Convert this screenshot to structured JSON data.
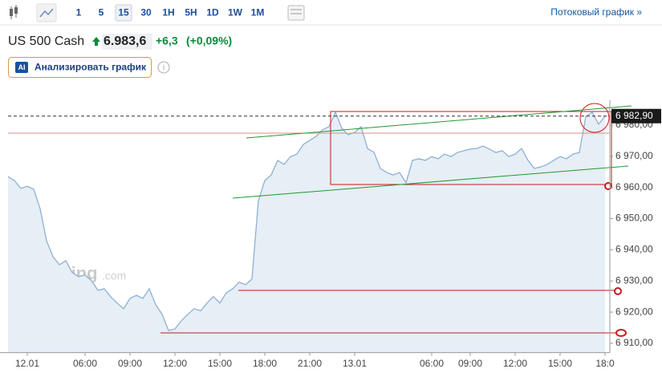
{
  "toolbar": {
    "intervals": [
      "1",
      "5",
      "15",
      "30",
      "1H",
      "5H",
      "1D",
      "1W",
      "1M"
    ],
    "stream_link": "Потоковый график »"
  },
  "header": {
    "symbol": "US 500 Cash",
    "price": "6.983,6",
    "change": "+6,3",
    "change_pct": "(+0,09%)"
  },
  "analyze_button": {
    "badge": "AI",
    "label": "Анализировать график"
  },
  "chart_data": {
    "type": "area",
    "watermark": [
      "Investing",
      ".com"
    ],
    "color": "#8fb0d3",
    "categories": [
      null,
      null,
      null,
      "12.01",
      null,
      null,
      null,
      null,
      null,
      null,
      null,
      null,
      "06:00",
      null,
      null,
      null,
      null,
      null,
      null,
      "09:00",
      null,
      null,
      null,
      null,
      null,
      null,
      "12:00",
      null,
      null,
      null,
      null,
      null,
      null,
      "15:00",
      null,
      null,
      null,
      null,
      null,
      null,
      "18:00",
      null,
      null,
      null,
      null,
      null,
      null,
      "21:00",
      null,
      null,
      null,
      null,
      null,
      null,
      "13.01",
      null,
      null,
      null,
      null,
      null,
      null,
      null,
      null,
      null,
      null,
      null,
      "06:00",
      null,
      null,
      null,
      null,
      null,
      "09:00",
      null,
      null,
      null,
      null,
      null,
      null,
      "12:00",
      null,
      null,
      null,
      null,
      null,
      null,
      "15:00",
      null,
      null,
      null,
      null,
      null,
      null,
      "18:0"
    ],
    "values": [
      6963.5,
      6962.2,
      6959.7,
      6960.4,
      6959.4,
      6953.2,
      6942.9,
      6937.8,
      6935.2,
      6936.5,
      6932.7,
      6931.4,
      6931.9,
      6930.1,
      6927.0,
      6927.5,
      6924.9,
      6922.9,
      6921.1,
      6924.4,
      6925.4,
      6924.4,
      6927.5,
      6922.4,
      6919.3,
      6914.1,
      6914.6,
      6917.2,
      6919.3,
      6921.1,
      6920.4,
      6922.9,
      6925.0,
      6922.9,
      6926.2,
      6927.5,
      6929.6,
      6928.8,
      6930.6,
      6955.8,
      6962.2,
      6964.0,
      6968.7,
      6967.4,
      6969.9,
      6970.7,
      6973.8,
      6975.1,
      6976.4,
      6978.5,
      6979.5,
      6984.1,
      6979.0,
      6976.9,
      6977.7,
      6979.5,
      6972.5,
      6971.3,
      6966.1,
      6964.8,
      6964.0,
      6964.8,
      6961.5,
      6968.7,
      6969.2,
      6968.7,
      6969.9,
      6969.2,
      6970.7,
      6969.9,
      6971.2,
      6971.8,
      6972.3,
      6972.5,
      6973.3,
      6972.3,
      6971.2,
      6971.8,
      6969.9,
      6970.7,
      6972.5,
      6968.7,
      6966.1,
      6966.6,
      6967.4,
      6968.7,
      6969.9,
      6969.2,
      6970.7,
      6971.2,
      6982.8,
      6984.1,
      6980.3,
      6982.9
    ],
    "ylim": [
      6907,
      6987
    ],
    "yticks": [
      {
        "value": 6910,
        "label": "6 910,00"
      },
      {
        "value": 6920,
        "label": "6 920,00"
      },
      {
        "value": 6930,
        "label": "6 930,00"
      },
      {
        "value": 6940,
        "label": "6 940,00"
      },
      {
        "value": 6950,
        "label": "6 950,00"
      },
      {
        "value": 6960,
        "label": "6 960,00"
      },
      {
        "value": 6970,
        "label": "6 970,00"
      },
      {
        "value": 6980,
        "label": "6 980,00"
      }
    ],
    "last_price": {
      "value": 6982.9,
      "label": "6 982,90"
    }
  }
}
